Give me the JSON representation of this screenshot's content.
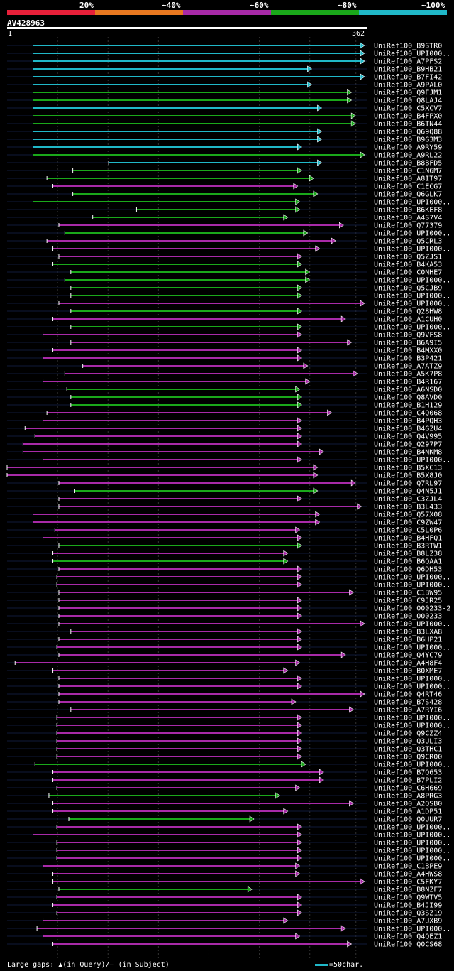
{
  "legend": {
    "labels": [
      "20%",
      "~40%",
      "~60%",
      "~80%",
      "~100%"
    ],
    "colors": [
      "#e8203a",
      "#e87820",
      "#a82aa8",
      "#1aa81a",
      "#20b8c8"
    ]
  },
  "query": {
    "id": "AV428963",
    "start": "1",
    "end": "362",
    "length": 362
  },
  "hits": [
    {
      "name": "UniRef100_B9STR0",
      "start": 26,
      "end": 362,
      "c": 4
    },
    {
      "name": "UniRef100_UPI000..",
      "start": 26,
      "end": 362,
      "c": 4
    },
    {
      "name": "UniRef100_A7PFS2",
      "start": 26,
      "end": 362,
      "c": 4
    },
    {
      "name": "UniRef100_B9HB21",
      "start": 26,
      "end": 306,
      "c": 4
    },
    {
      "name": "UniRef100_B7FI42",
      "start": 26,
      "end": 364,
      "c": 4
    },
    {
      "name": "UniRef100_A9PAL0",
      "start": 26,
      "end": 306,
      "c": 4
    },
    {
      "name": "UniRef100_Q9FJM1",
      "start": 26,
      "end": 346,
      "c": 3
    },
    {
      "name": "UniRef100_Q8LAJ4",
      "start": 26,
      "end": 346,
      "c": 3
    },
    {
      "name": "UniRef100_C5XCV7",
      "start": 26,
      "end": 316,
      "c": 4
    },
    {
      "name": "UniRef100_B4FPX0",
      "start": 26,
      "end": 350,
      "c": 3
    },
    {
      "name": "UniRef100_B6TN44",
      "start": 26,
      "end": 350,
      "c": 3
    },
    {
      "name": "UniRef100_Q69Q88",
      "start": 26,
      "end": 316,
      "c": 4
    },
    {
      "name": "UniRef100_B9G3M3",
      "start": 26,
      "end": 316,
      "c": 4
    },
    {
      "name": "UniRef100_A9RY59",
      "start": 26,
      "end": 296,
      "c": 4
    },
    {
      "name": "UniRef100_A9RL22",
      "start": 26,
      "end": 372,
      "c": 3
    },
    {
      "name": "UniRef100_B8BFD5",
      "start": 102,
      "end": 316,
      "c": 4
    },
    {
      "name": "UniRef100_C1N6M7",
      "start": 66,
      "end": 296,
      "c": 3
    },
    {
      "name": "UniRef100_A8IT97",
      "start": 40,
      "end": 308,
      "c": 3
    },
    {
      "name": "UniRef100_C1ECG7",
      "start": 46,
      "end": 292,
      "c": 2
    },
    {
      "name": "UniRef100_Q6GLK7",
      "start": 66,
      "end": 312,
      "c": 3
    },
    {
      "name": "UniRef100_UPI000..",
      "start": 26,
      "end": 294,
      "c": 3
    },
    {
      "name": "UniRef100_B6KEF8",
      "start": 130,
      "end": 294,
      "c": 3
    },
    {
      "name": "UniRef100_A4S7V4",
      "start": 86,
      "end": 282,
      "c": 3
    },
    {
      "name": "UniRef100_Q77379",
      "start": 52,
      "end": 338,
      "c": 2
    },
    {
      "name": "UniRef100_UPI000..",
      "start": 58,
      "end": 302,
      "c": 3
    },
    {
      "name": "UniRef100_Q5CRL3",
      "start": 40,
      "end": 330,
      "c": 2
    },
    {
      "name": "UniRef100_UPI000..",
      "start": 46,
      "end": 314,
      "c": 2
    },
    {
      "name": "UniRef100_Q5ZJS1",
      "start": 52,
      "end": 296,
      "c": 2
    },
    {
      "name": "UniRef100_B4KA53",
      "start": 46,
      "end": 296,
      "c": 3
    },
    {
      "name": "UniRef100_C0NHE7",
      "start": 64,
      "end": 304,
      "c": 3
    },
    {
      "name": "UniRef100_UPI000..",
      "start": 58,
      "end": 304,
      "c": 3
    },
    {
      "name": "UniRef100_Q5CJB9",
      "start": 64,
      "end": 296,
      "c": 3
    },
    {
      "name": "UniRef100_UPI000..",
      "start": 64,
      "end": 296,
      "c": 3
    },
    {
      "name": "UniRef100_UPI000..",
      "start": 52,
      "end": 364,
      "c": 2
    },
    {
      "name": "UniRef100_Q28HW8",
      "start": 64,
      "end": 296,
      "c": 3
    },
    {
      "name": "UniRef100_A1CUH0",
      "start": 46,
      "end": 340,
      "c": 2
    },
    {
      "name": "UniRef100_UPI000..",
      "start": 64,
      "end": 296,
      "c": 3
    },
    {
      "name": "UniRef100_Q9VFS8",
      "start": 36,
      "end": 296,
      "c": 2
    },
    {
      "name": "UniRef100_B6A9I5",
      "start": 64,
      "end": 346,
      "c": 2
    },
    {
      "name": "UniRef100_B4MXX0",
      "start": 46,
      "end": 296,
      "c": 2
    },
    {
      "name": "UniRef100_B3P421",
      "start": 36,
      "end": 296,
      "c": 2
    },
    {
      "name": "UniRef100_A7ATZ9",
      "start": 76,
      "end": 302,
      "c": 2
    },
    {
      "name": "UniRef100_A5K7P8",
      "start": 58,
      "end": 352,
      "c": 2
    },
    {
      "name": "UniRef100_B4R167",
      "start": 36,
      "end": 304,
      "c": 2
    },
    {
      "name": "UniRef100_A6NSD0",
      "start": 60,
      "end": 294,
      "c": 3
    },
    {
      "name": "UniRef100_Q8AVD0",
      "start": 64,
      "end": 296,
      "c": 3
    },
    {
      "name": "UniRef100_B1H129",
      "start": 64,
      "end": 296,
      "c": 3
    },
    {
      "name": "UniRef100_C4Q068",
      "start": 40,
      "end": 326,
      "c": 2
    },
    {
      "name": "UniRef100_B4PQH3",
      "start": 36,
      "end": 296,
      "c": 2
    },
    {
      "name": "UniRef100_B4GZU4",
      "start": 18,
      "end": 296,
      "c": 2
    },
    {
      "name": "UniRef100_Q4V995",
      "start": 28,
      "end": 296,
      "c": 2
    },
    {
      "name": "UniRef100_Q297P7",
      "start": 16,
      "end": 296,
      "c": 2
    },
    {
      "name": "UniRef100_B4NKM8",
      "start": 16,
      "end": 318,
      "c": 2
    },
    {
      "name": "UniRef100_UPI000..",
      "start": 36,
      "end": 296,
      "c": 2
    },
    {
      "name": "UniRef100_B5XC13",
      "start": 0,
      "end": 312,
      "c": 2
    },
    {
      "name": "UniRef100_B5X8J0",
      "start": 0,
      "end": 312,
      "c": 2
    },
    {
      "name": "UniRef100_Q7RL97",
      "start": 52,
      "end": 350,
      "c": 2
    },
    {
      "name": "UniRef100_Q4N5J1",
      "start": 68,
      "end": 312,
      "c": 3
    },
    {
      "name": "UniRef100_C3ZJL4",
      "start": 52,
      "end": 296,
      "c": 2
    },
    {
      "name": "UniRef100_B3L433",
      "start": 52,
      "end": 356,
      "c": 2
    },
    {
      "name": "UniRef100_Q57X08",
      "start": 26,
      "end": 314,
      "c": 2
    },
    {
      "name": "UniRef100_C9ZW47",
      "start": 26,
      "end": 314,
      "c": 2
    },
    {
      "name": "UniRef100_C5L0P6",
      "start": 48,
      "end": 294,
      "c": 2
    },
    {
      "name": "UniRef100_B4HFQ1",
      "start": 36,
      "end": 296,
      "c": 2
    },
    {
      "name": "UniRef100_B3RTW1",
      "start": 52,
      "end": 296,
      "c": 3
    },
    {
      "name": "UniRef100_B8LZ38",
      "start": 46,
      "end": 282,
      "c": 2
    },
    {
      "name": "UniRef100_B6QAA1",
      "start": 46,
      "end": 282,
      "c": 3
    },
    {
      "name": "UniRef100_Q6DH53",
      "start": 52,
      "end": 296,
      "c": 2
    },
    {
      "name": "UniRef100_UPI000..",
      "start": 50,
      "end": 296,
      "c": 2
    },
    {
      "name": "UniRef100_UPI000..",
      "start": 50,
      "end": 296,
      "c": 2
    },
    {
      "name": "UniRef100_C1BW95",
      "start": 52,
      "end": 348,
      "c": 2
    },
    {
      "name": "UniRef100_C9JR25",
      "start": 52,
      "end": 296,
      "c": 2
    },
    {
      "name": "UniRef100_O00233-2",
      "start": 52,
      "end": 296,
      "c": 2
    },
    {
      "name": "UniRef100_O00233",
      "start": 52,
      "end": 296,
      "c": 2
    },
    {
      "name": "UniRef100_UPI000..",
      "start": 52,
      "end": 364,
      "c": 2
    },
    {
      "name": "UniRef100_B3LXA8",
      "start": 64,
      "end": 296,
      "c": 2
    },
    {
      "name": "UniRef100_B6HP21",
      "start": 52,
      "end": 296,
      "c": 2
    },
    {
      "name": "UniRef100_UPI000..",
      "start": 50,
      "end": 296,
      "c": 2
    },
    {
      "name": "UniRef100_Q4YC79",
      "start": 52,
      "end": 340,
      "c": 2
    },
    {
      "name": "UniRef100_A4H8F4",
      "start": 8,
      "end": 294,
      "c": 2
    },
    {
      "name": "UniRef100_B0XME7",
      "start": 46,
      "end": 282,
      "c": 2
    },
    {
      "name": "UniRef100_UPI000..",
      "start": 52,
      "end": 296,
      "c": 2
    },
    {
      "name": "UniRef100_UPI000..",
      "start": 52,
      "end": 296,
      "c": 2
    },
    {
      "name": "UniRef100_Q4RT46",
      "start": 52,
      "end": 364,
      "c": 2
    },
    {
      "name": "UniRef100_B7S428",
      "start": 52,
      "end": 290,
      "c": 2
    },
    {
      "name": "UniRef100_A7RYI6",
      "start": 64,
      "end": 348,
      "c": 2
    },
    {
      "name": "UniRef100_UPI000..",
      "start": 50,
      "end": 296,
      "c": 2
    },
    {
      "name": "UniRef100_UPI000..",
      "start": 50,
      "end": 296,
      "c": 2
    },
    {
      "name": "UniRef100_Q9CZZ4",
      "start": 50,
      "end": 296,
      "c": 2
    },
    {
      "name": "UniRef100_Q3ULI3",
      "start": 50,
      "end": 296,
      "c": 2
    },
    {
      "name": "UniRef100_Q3THC1",
      "start": 50,
      "end": 296,
      "c": 2
    },
    {
      "name": "UniRef100_Q9CR00",
      "start": 50,
      "end": 296,
      "c": 2
    },
    {
      "name": "UniRef100_UPI000..",
      "start": 28,
      "end": 300,
      "c": 3
    },
    {
      "name": "UniRef100_B7Q653",
      "start": 46,
      "end": 318,
      "c": 2
    },
    {
      "name": "UniRef100_B7PLI2",
      "start": 46,
      "end": 318,
      "c": 2
    },
    {
      "name": "UniRef100_C6H669",
      "start": 50,
      "end": 294,
      "c": 2
    },
    {
      "name": "UniRef100_A8PRG3",
      "start": 42,
      "end": 274,
      "c": 3
    },
    {
      "name": "UniRef100_A2QSB0",
      "start": 46,
      "end": 348,
      "c": 2
    },
    {
      "name": "UniRef100_A1DP51",
      "start": 46,
      "end": 282,
      "c": 2
    },
    {
      "name": "UniRef100_Q0UUR7",
      "start": 62,
      "end": 248,
      "c": 3
    },
    {
      "name": "UniRef100_UPI000..",
      "start": 50,
      "end": 296,
      "c": 2
    },
    {
      "name": "UniRef100_UPI000..",
      "start": 26,
      "end": 296,
      "c": 2
    },
    {
      "name": "UniRef100_UPI000..",
      "start": 50,
      "end": 296,
      "c": 2
    },
    {
      "name": "UniRef100_UPI000..",
      "start": 50,
      "end": 296,
      "c": 2
    },
    {
      "name": "UniRef100_UPI000..",
      "start": 50,
      "end": 296,
      "c": 2
    },
    {
      "name": "UniRef100_C1BPE9",
      "start": 36,
      "end": 294,
      "c": 2
    },
    {
      "name": "UniRef100_A4HWS8",
      "start": 46,
      "end": 294,
      "c": 2
    },
    {
      "name": "UniRef100_C5FKY7",
      "start": 46,
      "end": 364,
      "c": 2
    },
    {
      "name": "UniRef100_B8NZF7",
      "start": 52,
      "end": 246,
      "c": 3
    },
    {
      "name": "UniRef100_Q9WTV5",
      "start": 50,
      "end": 296,
      "c": 2
    },
    {
      "name": "UniRef100_B4JI99",
      "start": 46,
      "end": 296,
      "c": 2
    },
    {
      "name": "UniRef100_Q3SZ19",
      "start": 50,
      "end": 296,
      "c": 2
    },
    {
      "name": "UniRef100_A7UXB9",
      "start": 36,
      "end": 282,
      "c": 2
    },
    {
      "name": "UniRef100_UPI000..",
      "start": 30,
      "end": 340,
      "c": 2
    },
    {
      "name": "UniRef100_Q4QEZ1",
      "start": 36,
      "end": 294,
      "c": 2
    },
    {
      "name": "UniRef100_Q0CS68",
      "start": 46,
      "end": 346,
      "c": 2
    }
  ],
  "footer": {
    "gaps_label": "Large gaps: ▲(in Query)/– (in Subject)",
    "scale_label": "=50char."
  }
}
